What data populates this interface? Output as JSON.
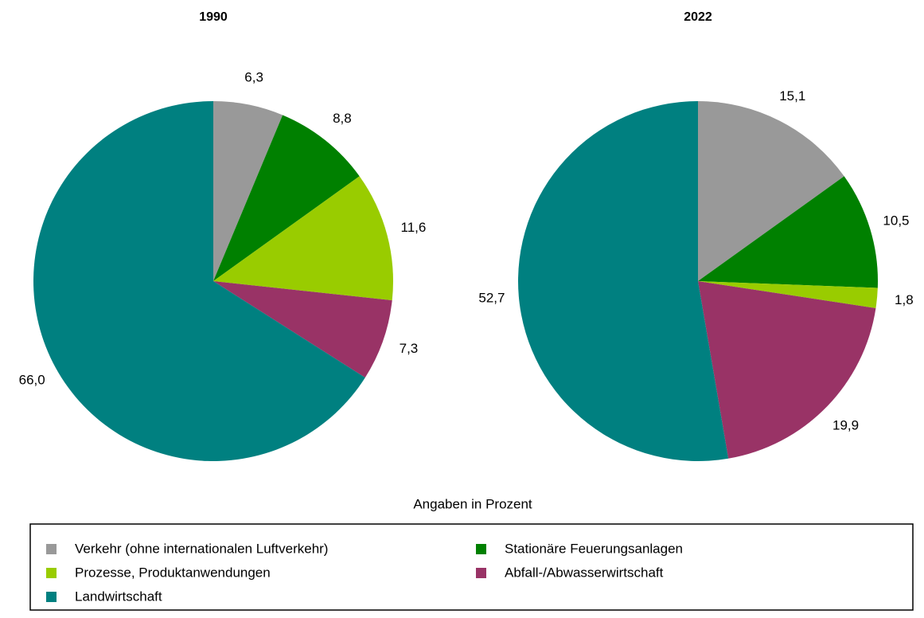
{
  "chart_data": [
    {
      "type": "pie",
      "title": "1990",
      "values": [
        6.3,
        8.8,
        11.6,
        7.3,
        66.0
      ],
      "value_labels": [
        "6,3",
        "8,8",
        "11,6",
        "7,3",
        "66,0"
      ]
    },
    {
      "type": "pie",
      "title": "2022",
      "values": [
        15.1,
        10.5,
        1.8,
        19.9,
        52.7
      ],
      "value_labels": [
        "15,1",
        "10,5",
        "1,8",
        "19,9",
        "52,7"
      ]
    }
  ],
  "note": "Angaben in Prozent",
  "legend": {
    "items": [
      "Verkehr (ohne internationalen Luftverkehr)",
      "Stationäre Feuerungsanlagen",
      "Prozesse, Produktanwendungen",
      "Abfall-/Abwasserwirtschaft",
      "Landwirtschaft"
    ],
    "colors": [
      "#999999",
      "#008000",
      "#99cc00",
      "#993366",
      "#008080"
    ]
  }
}
